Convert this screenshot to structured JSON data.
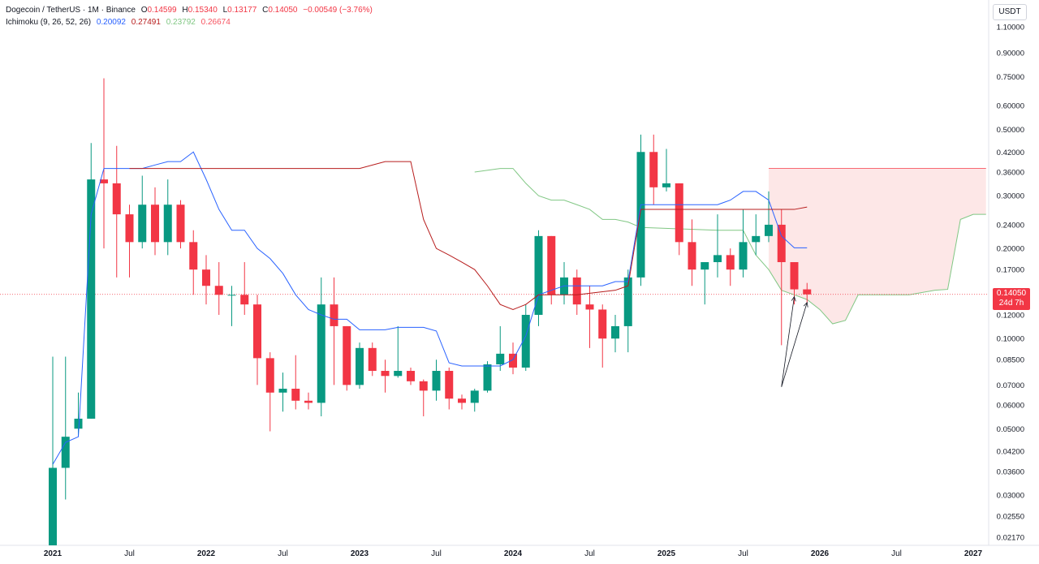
{
  "header": {
    "symbol": "Dogecoin / TetherUS · 1M · Binance",
    "open_label": "O",
    "open": "0.14599",
    "high_label": "H",
    "high": "0.15340",
    "low_label": "L",
    "low": "0.13177",
    "close_label": "C",
    "close": "0.14050",
    "change": "−0.00549 (−3.76%)",
    "indicator": "Ichimoku (9, 26, 52, 26)",
    "ind_values": [
      "0.20092",
      "0.27491",
      "0.23792",
      "0.26674"
    ]
  },
  "colors": {
    "up": "#089981",
    "down": "#f23645",
    "conversion": "#2962ff",
    "base": "#b71c1c",
    "span_a": "#81c784",
    "span_b": "#f7525f",
    "cloud_bear": "#fde3e3",
    "grid": "#f0f3fa"
  },
  "price_axis": {
    "unit": "USDT",
    "ticks": [
      "1.10000",
      "0.90000",
      "0.75000",
      "0.60000",
      "0.50000",
      "0.42000",
      "0.36000",
      "0.30000",
      "0.24000",
      "0.20000",
      "0.17000",
      "0.14050",
      "0.12000",
      "0.10000",
      "0.08500",
      "0.07000",
      "0.06000",
      "0.05000",
      "0.04200",
      "0.03600",
      "0.03000",
      "0.02550",
      "0.02170"
    ],
    "current_price": "0.14050",
    "countdown": "24d 7h"
  },
  "time_axis": {
    "labels": [
      "2021",
      "Jul",
      "2022",
      "Jul",
      "2023",
      "Jul",
      "2024",
      "Jul",
      "2025",
      "Jul",
      "2026",
      "Jul",
      "2027"
    ]
  },
  "chart_data": {
    "type": "candlestick",
    "scale": "log",
    "ylim": [
      0.0205,
      1.15
    ],
    "x_start": "2021-01",
    "x_end": "2027-02",
    "candles": [
      {
        "t": "2021-01",
        "o": 0.0057,
        "h": 0.087,
        "l": 0.0046,
        "c": 0.037
      },
      {
        "t": "2021-02",
        "o": 0.037,
        "h": 0.087,
        "l": 0.029,
        "c": 0.047
      },
      {
        "t": "2021-03",
        "o": 0.05,
        "h": 0.066,
        "l": 0.047,
        "c": 0.054
      },
      {
        "t": "2021-04",
        "o": 0.054,
        "h": 0.45,
        "l": 0.054,
        "c": 0.34
      },
      {
        "t": "2021-05",
        "o": 0.34,
        "h": 0.74,
        "l": 0.2,
        "c": 0.33
      },
      {
        "t": "2021-06",
        "o": 0.33,
        "h": 0.44,
        "l": 0.16,
        "c": 0.26
      },
      {
        "t": "2021-07",
        "o": 0.26,
        "h": 0.28,
        "l": 0.16,
        "c": 0.21
      },
      {
        "t": "2021-08",
        "o": 0.21,
        "h": 0.35,
        "l": 0.2,
        "c": 0.28
      },
      {
        "t": "2021-09",
        "o": 0.28,
        "h": 0.32,
        "l": 0.19,
        "c": 0.21
      },
      {
        "t": "2021-10",
        "o": 0.21,
        "h": 0.34,
        "l": 0.19,
        "c": 0.28
      },
      {
        "t": "2021-11",
        "o": 0.28,
        "h": 0.29,
        "l": 0.2,
        "c": 0.21
      },
      {
        "t": "2021-12",
        "o": 0.21,
        "h": 0.23,
        "l": 0.14,
        "c": 0.17
      },
      {
        "t": "2022-01",
        "o": 0.17,
        "h": 0.19,
        "l": 0.13,
        "c": 0.15
      },
      {
        "t": "2022-02",
        "o": 0.15,
        "h": 0.18,
        "l": 0.12,
        "c": 0.14
      },
      {
        "t": "2022-03",
        "o": 0.14,
        "h": 0.15,
        "l": 0.11,
        "c": 0.14
      },
      {
        "t": "2022-04",
        "o": 0.14,
        "h": 0.18,
        "l": 0.12,
        "c": 0.13
      },
      {
        "t": "2022-05",
        "o": 0.13,
        "h": 0.14,
        "l": 0.07,
        "c": 0.086
      },
      {
        "t": "2022-06",
        "o": 0.086,
        "h": 0.09,
        "l": 0.049,
        "c": 0.066
      },
      {
        "t": "2022-07",
        "o": 0.066,
        "h": 0.077,
        "l": 0.057,
        "c": 0.068
      },
      {
        "t": "2022-08",
        "o": 0.068,
        "h": 0.088,
        "l": 0.058,
        "c": 0.062
      },
      {
        "t": "2022-09",
        "o": 0.062,
        "h": 0.066,
        "l": 0.058,
        "c": 0.061
      },
      {
        "t": "2022-10",
        "o": 0.061,
        "h": 0.16,
        "l": 0.055,
        "c": 0.13
      },
      {
        "t": "2022-11",
        "o": 0.13,
        "h": 0.16,
        "l": 0.07,
        "c": 0.11
      },
      {
        "t": "2022-12",
        "o": 0.11,
        "h": 0.11,
        "l": 0.067,
        "c": 0.07
      },
      {
        "t": "2023-01",
        "o": 0.07,
        "h": 0.097,
        "l": 0.068,
        "c": 0.093
      },
      {
        "t": "2023-02",
        "o": 0.093,
        "h": 0.097,
        "l": 0.075,
        "c": 0.078
      },
      {
        "t": "2023-03",
        "o": 0.078,
        "h": 0.085,
        "l": 0.066,
        "c": 0.075
      },
      {
        "t": "2023-04",
        "o": 0.075,
        "h": 0.11,
        "l": 0.074,
        "c": 0.078
      },
      {
        "t": "2023-05",
        "o": 0.078,
        "h": 0.08,
        "l": 0.07,
        "c": 0.072
      },
      {
        "t": "2023-06",
        "o": 0.072,
        "h": 0.073,
        "l": 0.055,
        "c": 0.067
      },
      {
        "t": "2023-07",
        "o": 0.067,
        "h": 0.085,
        "l": 0.062,
        "c": 0.078
      },
      {
        "t": "2023-08",
        "o": 0.078,
        "h": 0.08,
        "l": 0.058,
        "c": 0.063
      },
      {
        "t": "2023-09",
        "o": 0.063,
        "h": 0.065,
        "l": 0.058,
        "c": 0.061
      },
      {
        "t": "2023-10",
        "o": 0.061,
        "h": 0.068,
        "l": 0.057,
        "c": 0.067
      },
      {
        "t": "2023-11",
        "o": 0.067,
        "h": 0.084,
        "l": 0.066,
        "c": 0.082
      },
      {
        "t": "2023-12",
        "o": 0.082,
        "h": 0.11,
        "l": 0.078,
        "c": 0.089
      },
      {
        "t": "2024-01",
        "o": 0.089,
        "h": 0.097,
        "l": 0.076,
        "c": 0.08
      },
      {
        "t": "2024-02",
        "o": 0.08,
        "h": 0.13,
        "l": 0.078,
        "c": 0.12
      },
      {
        "t": "2024-03",
        "o": 0.12,
        "h": 0.23,
        "l": 0.11,
        "c": 0.22
      },
      {
        "t": "2024-04",
        "o": 0.22,
        "h": 0.22,
        "l": 0.13,
        "c": 0.14
      },
      {
        "t": "2024-05",
        "o": 0.14,
        "h": 0.18,
        "l": 0.13,
        "c": 0.16
      },
      {
        "t": "2024-06",
        "o": 0.16,
        "h": 0.17,
        "l": 0.12,
        "c": 0.13
      },
      {
        "t": "2024-07",
        "o": 0.13,
        "h": 0.15,
        "l": 0.093,
        "c": 0.125
      },
      {
        "t": "2024-08",
        "o": 0.125,
        "h": 0.13,
        "l": 0.08,
        "c": 0.1
      },
      {
        "t": "2024-09",
        "o": 0.1,
        "h": 0.12,
        "l": 0.09,
        "c": 0.11
      },
      {
        "t": "2024-10",
        "o": 0.11,
        "h": 0.17,
        "l": 0.09,
        "c": 0.16
      },
      {
        "t": "2024-11",
        "o": 0.16,
        "h": 0.48,
        "l": 0.15,
        "c": 0.42
      },
      {
        "t": "2024-12",
        "o": 0.42,
        "h": 0.48,
        "l": 0.28,
        "c": 0.32
      },
      {
        "t": "2025-01",
        "o": 0.32,
        "h": 0.43,
        "l": 0.31,
        "c": 0.33
      },
      {
        "t": "2025-02",
        "o": 0.33,
        "h": 0.33,
        "l": 0.19,
        "c": 0.21
      },
      {
        "t": "2025-03",
        "o": 0.21,
        "h": 0.25,
        "l": 0.15,
        "c": 0.17
      },
      {
        "t": "2025-04",
        "o": 0.17,
        "h": 0.18,
        "l": 0.13,
        "c": 0.18
      },
      {
        "t": "2025-05",
        "o": 0.18,
        "h": 0.26,
        "l": 0.16,
        "c": 0.19
      },
      {
        "t": "2025-06",
        "o": 0.19,
        "h": 0.2,
        "l": 0.15,
        "c": 0.17
      },
      {
        "t": "2025-07",
        "o": 0.17,
        "h": 0.27,
        "l": 0.16,
        "c": 0.21
      },
      {
        "t": "2025-08",
        "o": 0.21,
        "h": 0.26,
        "l": 0.19,
        "c": 0.22
      },
      {
        "t": "2025-09",
        "o": 0.22,
        "h": 0.31,
        "l": 0.21,
        "c": 0.24
      },
      {
        "t": "2025-10",
        "o": 0.24,
        "h": 0.27,
        "l": 0.095,
        "c": 0.18
      },
      {
        "t": "2025-11",
        "o": 0.18,
        "h": 0.18,
        "l": 0.13,
        "c": 0.146
      },
      {
        "t": "2025-12",
        "o": 0.14599,
        "h": 0.1534,
        "l": 0.13177,
        "c": 0.1405
      }
    ],
    "ichimoku": {
      "conversion": [
        [
          "2021-01",
          0.038
        ],
        [
          "2021-02",
          0.045
        ],
        [
          "2021-03",
          0.047
        ],
        [
          "2021-04",
          0.26
        ],
        [
          "2021-05",
          0.37
        ],
        [
          "2021-06",
          0.37
        ],
        [
          "2021-07",
          0.37
        ],
        [
          "2021-08",
          0.37
        ],
        [
          "2021-09",
          0.38
        ],
        [
          "2021-10",
          0.39
        ],
        [
          "2021-11",
          0.39
        ],
        [
          "2021-12",
          0.42
        ],
        [
          "2022-01",
          0.34
        ],
        [
          "2022-02",
          0.27
        ],
        [
          "2022-03",
          0.23
        ],
        [
          "2022-04",
          0.23
        ],
        [
          "2022-05",
          0.2
        ],
        [
          "2022-06",
          0.185
        ],
        [
          "2022-07",
          0.165
        ],
        [
          "2022-08",
          0.14
        ],
        [
          "2022-09",
          0.125
        ],
        [
          "2022-10",
          0.12
        ],
        [
          "2022-11",
          0.116
        ],
        [
          "2022-12",
          0.116
        ],
        [
          "2023-01",
          0.107
        ],
        [
          "2023-02",
          0.107
        ],
        [
          "2023-03",
          0.107
        ],
        [
          "2023-04",
          0.109
        ],
        [
          "2023-05",
          0.109
        ],
        [
          "2023-06",
          0.109
        ],
        [
          "2023-07",
          0.106
        ],
        [
          "2023-08",
          0.083
        ],
        [
          "2023-09",
          0.081
        ],
        [
          "2023-10",
          0.081
        ],
        [
          "2023-11",
          0.081
        ],
        [
          "2023-12",
          0.081
        ],
        [
          "2024-01",
          0.085
        ],
        [
          "2024-02",
          0.102
        ],
        [
          "2024-03",
          0.14
        ],
        [
          "2024-04",
          0.145
        ],
        [
          "2024-05",
          0.15
        ],
        [
          "2024-06",
          0.15
        ],
        [
          "2024-07",
          0.15
        ],
        [
          "2024-08",
          0.15
        ],
        [
          "2024-09",
          0.155
        ],
        [
          "2024-10",
          0.155
        ],
        [
          "2024-11",
          0.28
        ],
        [
          "2024-12",
          0.28
        ],
        [
          "2025-01",
          0.28
        ],
        [
          "2025-02",
          0.28
        ],
        [
          "2025-03",
          0.28
        ],
        [
          "2025-04",
          0.28
        ],
        [
          "2025-05",
          0.28
        ],
        [
          "2025-06",
          0.29
        ],
        [
          "2025-07",
          0.31
        ],
        [
          "2025-08",
          0.31
        ],
        [
          "2025-09",
          0.29
        ],
        [
          "2025-10",
          0.22
        ],
        [
          "2025-11",
          0.20092
        ],
        [
          "2025-12",
          0.20092
        ]
      ],
      "base": [
        [
          "2021-07",
          0.37
        ],
        [
          "2021-12",
          0.37
        ],
        [
          "2022-07",
          0.37
        ],
        [
          "2022-12",
          0.37
        ],
        [
          "2023-01",
          0.37
        ],
        [
          "2023-03",
          0.39
        ],
        [
          "2023-05",
          0.39
        ],
        [
          "2023-06",
          0.25
        ],
        [
          "2023-07",
          0.2
        ],
        [
          "2023-08",
          0.19
        ],
        [
          "2023-09",
          0.18
        ],
        [
          "2023-10",
          0.17
        ],
        [
          "2023-11",
          0.15
        ],
        [
          "2023-12",
          0.13
        ],
        [
          "2024-01",
          0.125
        ],
        [
          "2024-02",
          0.13
        ],
        [
          "2024-03",
          0.14
        ],
        [
          "2024-06",
          0.14
        ],
        [
          "2024-09",
          0.145
        ],
        [
          "2024-10",
          0.15
        ],
        [
          "2024-11",
          0.27
        ],
        [
          "2025-06",
          0.27
        ],
        [
          "2025-11",
          0.27
        ],
        [
          "2025-12",
          0.27491
        ]
      ],
      "span_a": [
        [
          "2023-10",
          0.36
        ],
        [
          "2023-12",
          0.37
        ],
        [
          "2024-01",
          0.37
        ],
        [
          "2024-02",
          0.33
        ],
        [
          "2024-03",
          0.3
        ],
        [
          "2024-04",
          0.29
        ],
        [
          "2024-05",
          0.29
        ],
        [
          "2024-06",
          0.28
        ],
        [
          "2024-07",
          0.27
        ],
        [
          "2024-08",
          0.25
        ],
        [
          "2024-09",
          0.25
        ],
        [
          "2024-10",
          0.245
        ],
        [
          "2024-11",
          0.235
        ],
        [
          "2025-05",
          0.23
        ],
        [
          "2025-07",
          0.23
        ],
        [
          "2025-08",
          0.19
        ],
        [
          "2025-09",
          0.17
        ],
        [
          "2025-10",
          0.145
        ],
        [
          "2025-11",
          0.14
        ],
        [
          "2025-12",
          0.135
        ],
        [
          "2026-01",
          0.125
        ],
        [
          "2026-02",
          0.112
        ],
        [
          "2026-03",
          0.115
        ],
        [
          "2026-04",
          0.14
        ],
        [
          "2026-08",
          0.14
        ],
        [
          "2026-10",
          0.145
        ],
        [
          "2026-11",
          0.146
        ],
        [
          "2026-12",
          0.25
        ],
        [
          "2027-01",
          0.26
        ],
        [
          "2027-02",
          0.26
        ]
      ],
      "span_b": [
        [
          "2025-09",
          0.37
        ],
        [
          "2027-02",
          0.37
        ]
      ]
    },
    "annotations": {
      "arrows": [
        {
          "from": [
            "2025-10",
            0.069
          ],
          "to": [
            "2025-11",
            0.138
          ]
        },
        {
          "from": [
            "2025-10",
            0.069
          ],
          "to": [
            "2025-12",
            0.132
          ]
        }
      ]
    }
  }
}
